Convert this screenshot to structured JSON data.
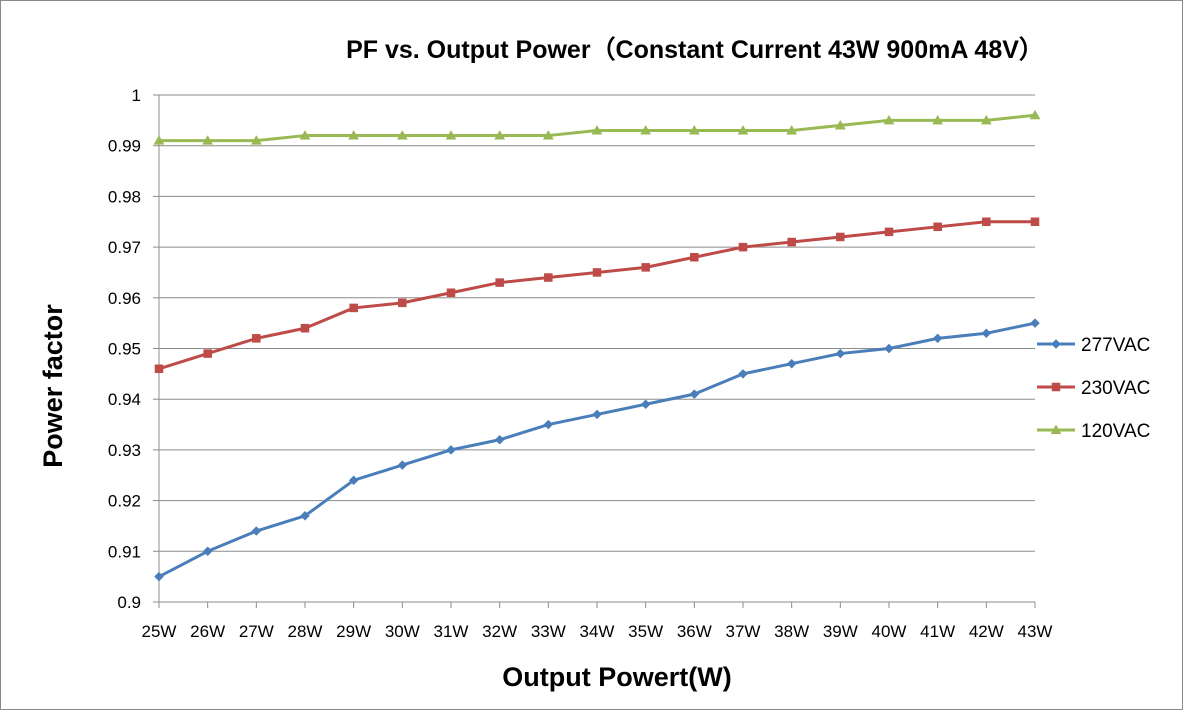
{
  "chart_data": {
    "type": "line",
    "title": "PF vs. Output Power（Constant Current 43W 900mA 48V）",
    "xlabel": "Output Powert(W)",
    "ylabel": "Power factor",
    "categories": [
      "25W",
      "26W",
      "27W",
      "28W",
      "29W",
      "30W",
      "31W",
      "32W",
      "33W",
      "34W",
      "35W",
      "36W",
      "37W",
      "38W",
      "39W",
      "40W",
      "41W",
      "42W",
      "43W"
    ],
    "ylim": [
      0.9,
      1
    ],
    "ytick_step": 0.01,
    "yticks": [
      "0.9",
      "0.91",
      "0.92",
      "0.93",
      "0.94",
      "0.95",
      "0.96",
      "0.97",
      "0.98",
      "0.99",
      "1"
    ],
    "grid": true,
    "legend_position": "right",
    "series": [
      {
        "name": "277VAC",
        "color": "#4A7EBB",
        "marker": "diamond",
        "values": [
          0.905,
          0.91,
          0.914,
          0.917,
          0.924,
          0.927,
          0.93,
          0.932,
          0.935,
          0.937,
          0.939,
          0.941,
          0.945,
          0.947,
          0.949,
          0.95,
          0.952,
          0.953,
          0.955
        ]
      },
      {
        "name": "230VAC",
        "color": "#BE4B48",
        "marker": "square",
        "values": [
          0.946,
          0.949,
          0.952,
          0.954,
          0.958,
          0.959,
          0.961,
          0.963,
          0.964,
          0.965,
          0.966,
          0.968,
          0.97,
          0.971,
          0.972,
          0.973,
          0.974,
          0.975,
          0.975
        ]
      },
      {
        "name": "120VAC",
        "color": "#98B954",
        "marker": "triangle",
        "values": [
          0.991,
          0.991,
          0.991,
          0.992,
          0.992,
          0.992,
          0.992,
          0.992,
          0.992,
          0.993,
          0.993,
          0.993,
          0.993,
          0.993,
          0.994,
          0.995,
          0.995,
          0.995,
          0.996
        ]
      }
    ]
  }
}
